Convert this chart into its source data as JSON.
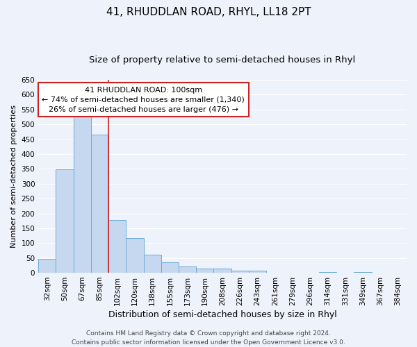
{
  "title": "41, RHUDDLAN ROAD, RHYL, LL18 2PT",
  "subtitle": "Size of property relative to semi-detached houses in Rhyl",
  "xlabel": "Distribution of semi-detached houses by size in Rhyl",
  "ylabel": "Number of semi-detached properties",
  "bar_color": "#c5d8f0",
  "bar_edge_color": "#6aaad4",
  "bar_linewidth": 0.7,
  "categories": [
    "32sqm",
    "50sqm",
    "67sqm",
    "85sqm",
    "102sqm",
    "120sqm",
    "138sqm",
    "155sqm",
    "173sqm",
    "190sqm",
    "208sqm",
    "226sqm",
    "243sqm",
    "261sqm",
    "279sqm",
    "296sqm",
    "314sqm",
    "331sqm",
    "349sqm",
    "367sqm",
    "384sqm"
  ],
  "values": [
    47,
    348,
    535,
    465,
    178,
    118,
    62,
    35,
    22,
    15,
    15,
    8,
    8,
    1,
    0,
    0,
    3,
    0,
    3,
    0,
    0
  ],
  "ylim": [
    0,
    650
  ],
  "yticks": [
    0,
    50,
    100,
    150,
    200,
    250,
    300,
    350,
    400,
    450,
    500,
    550,
    600,
    650
  ],
  "vline_index": 3.5,
  "vline_color": "#cc2222",
  "vline_linewidth": 1.2,
  "annotation_title": "41 RHUDDLAN ROAD: 100sqm",
  "annotation_line1": "← 74% of semi-detached houses are smaller (1,340)",
  "annotation_line2": "26% of semi-detached houses are larger (476) →",
  "annotation_box_facecolor": "#ffffff",
  "annotation_box_edgecolor": "#cc2222",
  "background_color": "#eef2fa",
  "grid_color": "#ffffff",
  "footer_line1": "Contains HM Land Registry data © Crown copyright and database right 2024.",
  "footer_line2": "Contains public sector information licensed under the Open Government Licence v3.0.",
  "title_fontsize": 11,
  "subtitle_fontsize": 9.5,
  "xlabel_fontsize": 9,
  "ylabel_fontsize": 8,
  "tick_fontsize": 7.5,
  "annotation_fontsize": 8,
  "footer_fontsize": 6.5
}
